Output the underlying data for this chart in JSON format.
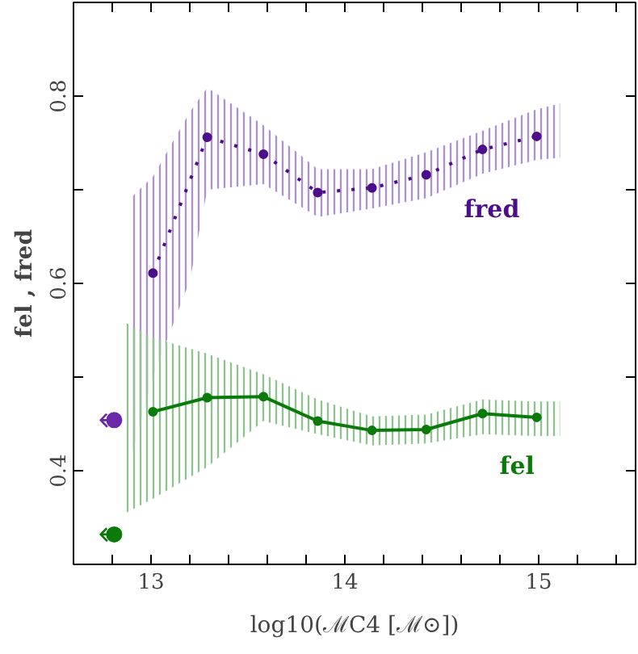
{
  "chart_data": {
    "type": "line",
    "xlabel": "log10(ℳC4 [ℳ⊙])",
    "ylabel": "fel , fred",
    "xlim": [
      12.6,
      15.5
    ],
    "ylim": [
      0.3,
      0.9
    ],
    "xticks": [
      {
        "value": 12.6,
        "label": null
      },
      {
        "value": 12.8,
        "label": null
      },
      13,
      {
        "value": 13.2,
        "label": null
      },
      {
        "value": 13.4,
        "label": null
      },
      {
        "value": 13.6,
        "label": null
      },
      {
        "value": 13.8,
        "label": null
      },
      14,
      {
        "value": 14.2,
        "label": null
      },
      {
        "value": 14.4,
        "label": null
      },
      {
        "value": 14.6,
        "label": null
      },
      {
        "value": 14.8,
        "label": null
      },
      15,
      {
        "value": 15.2,
        "label": null
      },
      {
        "value": 15.4,
        "label": null
      }
    ],
    "yticks": [
      0.4,
      {
        "value": 0.5,
        "label": null
      },
      0.6,
      {
        "value": 0.7,
        "label": null
      },
      0.8
    ],
    "grid": false,
    "marker": "circle",
    "series": [
      {
        "name": "fred",
        "color": "#4b0f8c",
        "line_style": "dotted",
        "x": [
          12.89,
          13.01,
          13.2,
          13.29,
          13.58,
          13.86,
          14.14,
          14.42,
          14.71,
          14.99,
          15.11
        ],
        "values": [
          null,
          0.611,
          null,
          0.756,
          0.738,
          0.697,
          0.702,
          0.716,
          0.743,
          0.757,
          null
        ],
        "lower": [
          0.41,
          0.5,
          0.603,
          0.7,
          0.706,
          0.671,
          0.68,
          0.691,
          0.717,
          0.732,
          0.734
        ],
        "upper": [
          0.69,
          0.714,
          0.783,
          0.809,
          0.769,
          0.722,
          0.722,
          0.74,
          0.763,
          0.786,
          0.792
        ]
      },
      {
        "name": "fel",
        "color": "#0a7a0a",
        "line_style": "solid",
        "x": [
          12.87,
          13.01,
          13.29,
          13.58,
          13.86,
          14.14,
          14.42,
          14.71,
          14.99,
          15.11
        ],
        "values": [
          null,
          0.463,
          0.478,
          0.479,
          0.453,
          0.443,
          0.444,
          0.461,
          0.457,
          null
        ],
        "lower": [
          0.355,
          0.37,
          0.404,
          0.453,
          0.439,
          0.427,
          0.429,
          0.439,
          0.437,
          0.437
        ],
        "upper": [
          0.558,
          0.542,
          0.525,
          0.503,
          0.476,
          0.458,
          0.46,
          0.476,
          0.474,
          0.474
        ]
      },
      {
        "type": "scatter",
        "color": "#6a2aa8",
        "x": [
          12.81
        ],
        "values": [
          0.454
        ],
        "xerrors": [
          [
            12.74,
            12.81
          ]
        ]
      },
      {
        "type": "scatter",
        "color": "#0a7a0a",
        "x": [
          12.81
        ],
        "values": [
          0.332
        ],
        "xerrors": [
          [
            12.74,
            12.81
          ]
        ]
      }
    ]
  }
}
